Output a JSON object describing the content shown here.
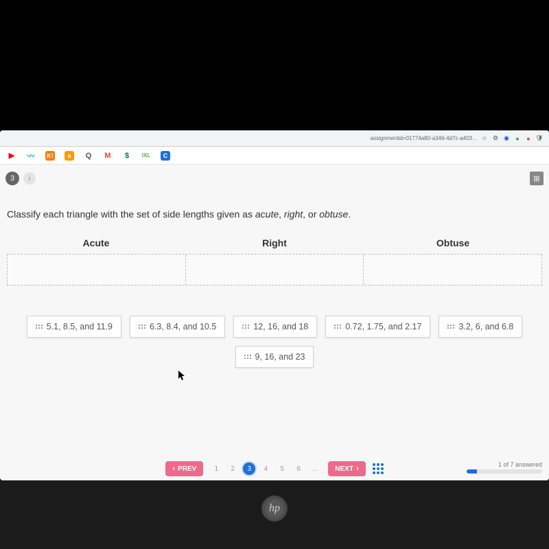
{
  "chrome": {
    "url": "assignmentid=01774a80-a346-4d7c-a403…",
    "star_color": "#5f6368"
  },
  "bookmarks": [
    {
      "name": "youtube-icon",
      "glyph": "▶",
      "cls": "bm-yt"
    },
    {
      "name": "wave-icon",
      "glyph": "〰",
      "cls": "bm-wave"
    },
    {
      "name": "k-icon",
      "glyph": "K!",
      "cls": "bm-k"
    },
    {
      "name": "a-icon",
      "glyph": "a",
      "cls": "bm-a"
    },
    {
      "name": "q-icon",
      "glyph": "Q",
      "cls": "bm-q"
    },
    {
      "name": "gmail-icon",
      "glyph": "M",
      "cls": "bm-m"
    },
    {
      "name": "dollar-icon",
      "glyph": "$",
      "cls": "bm-dol"
    },
    {
      "name": "ixl-icon",
      "glyph": "IXL",
      "cls": "bm-ixl"
    },
    {
      "name": "c-icon",
      "glyph": "C",
      "cls": "bm-c"
    }
  ],
  "question": {
    "number": "3",
    "prompt_plain": "Classify each triangle with the set of side lengths given as ",
    "prompt_ital1": "acute",
    "comma1": ", ",
    "prompt_ital2": "right",
    "comma2": ", or ",
    "prompt_ital3": "obtuse",
    "period": "."
  },
  "categories": [
    "Acute",
    "Right",
    "Obtuse"
  ],
  "chips": [
    "5.1, 8.5,  and 11.9",
    "6.3, 8.4, and 10.5",
    "12, 16,  and 18",
    "0.72, 1.75, and 2.17",
    "3.2, 6, and 6.8",
    "9, 16, and 23"
  ],
  "pager": {
    "prev": "PREV",
    "next": "NEXT",
    "pages": [
      "1",
      "2",
      "3",
      "4",
      "5",
      "6",
      "…"
    ],
    "active_index": 2,
    "progress_label": "1 of 7 answered",
    "progress_pct": 14
  },
  "colors": {
    "accent": "#1e6fd9",
    "pink": "#ed6a8b",
    "page_bg": "#f7f7f7",
    "chip_border": "#d4d4d4",
    "drop_border": "#bdbdbd"
  }
}
